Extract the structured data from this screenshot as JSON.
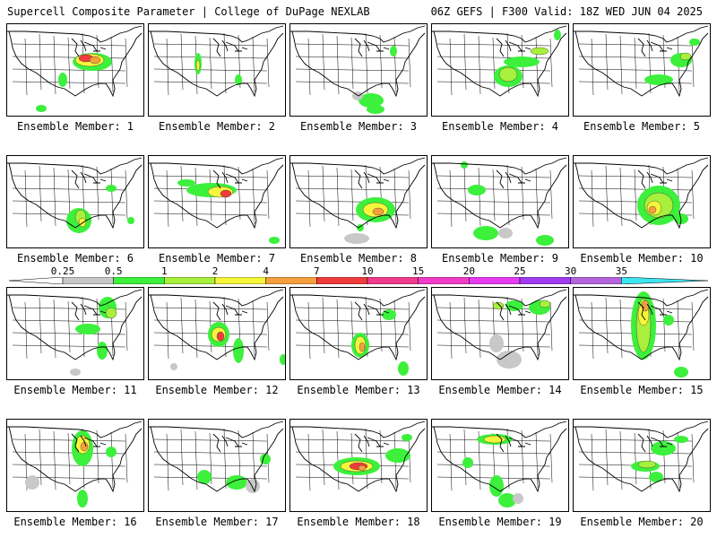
{
  "header": {
    "left_title": "Supercell Composite Parameter | College of DuPage NEXLAB",
    "right_title": "06Z GEFS | F300 Valid: 18Z WED JUN 04 2025"
  },
  "colorbar": {
    "labels": [
      "0.25",
      "0.5",
      "1",
      "2",
      "4",
      "7",
      "10",
      "15",
      "20",
      "25",
      "30",
      "35"
    ],
    "colors": [
      "#c8c8c8",
      "#3cf03c",
      "#a8f03c",
      "#f5f53c",
      "#f5a03c",
      "#f03c3c",
      "#f03c8c",
      "#f03cc8",
      "#e63cf0",
      "#a03cf0",
      "#b464dc",
      "#3ce6f0"
    ]
  },
  "panels": [
    {
      "label": "Ensemble Member: 1"
    },
    {
      "label": "Ensemble Member: 2"
    },
    {
      "label": "Ensemble Member: 3"
    },
    {
      "label": "Ensemble Member: 4"
    },
    {
      "label": "Ensemble Member: 5"
    },
    {
      "label": "Ensemble Member: 6"
    },
    {
      "label": "Ensemble Member: 7"
    },
    {
      "label": "Ensemble Member: 8"
    },
    {
      "label": "Ensemble Member: 9"
    },
    {
      "label": "Ensemble Member: 10"
    },
    {
      "label": "Ensemble Member: 11"
    },
    {
      "label": "Ensemble Member: 12"
    },
    {
      "label": "Ensemble Member: 13"
    },
    {
      "label": "Ensemble Member: 14"
    },
    {
      "label": "Ensemble Member: 15"
    },
    {
      "label": "Ensemble Member: 16"
    },
    {
      "label": "Ensemble Member: 17"
    },
    {
      "label": "Ensemble Member: 18"
    },
    {
      "label": "Ensemble Member: 19"
    },
    {
      "label": "Ensemble Member: 20"
    }
  ]
}
